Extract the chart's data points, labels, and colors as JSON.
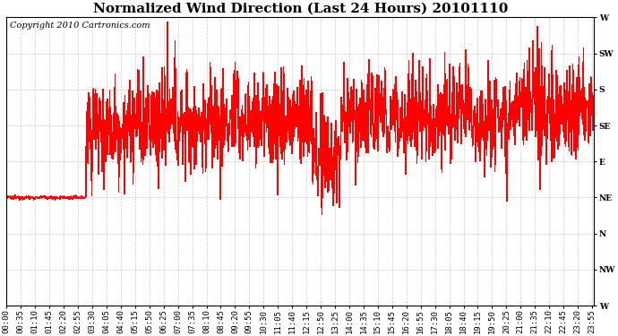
{
  "title": "Normalized Wind Direction (Last 24 Hours) 20101110",
  "copyright": "Copyright 2010 Cartronics.com",
  "line_color": "#FF0000",
  "bg_color": "#FFFFFF",
  "plot_bg_color": "#FFFFFF",
  "ytick_labels": [
    "W",
    "SW",
    "S",
    "SE",
    "E",
    "NE",
    "N",
    "NW",
    "W"
  ],
  "ytick_values": [
    1.0,
    0.875,
    0.75,
    0.625,
    0.5,
    0.375,
    0.25,
    0.125,
    0.0
  ],
  "ylim": [
    0.0,
    1.0
  ],
  "grid_color": "#BBBBBB",
  "title_fontsize": 11,
  "copyright_fontsize": 7,
  "tick_fontsize": 6.5,
  "xtick_interval_minutes": 35,
  "ne_level": 0.375,
  "transition_minute": 195,
  "base_after": 0.62
}
